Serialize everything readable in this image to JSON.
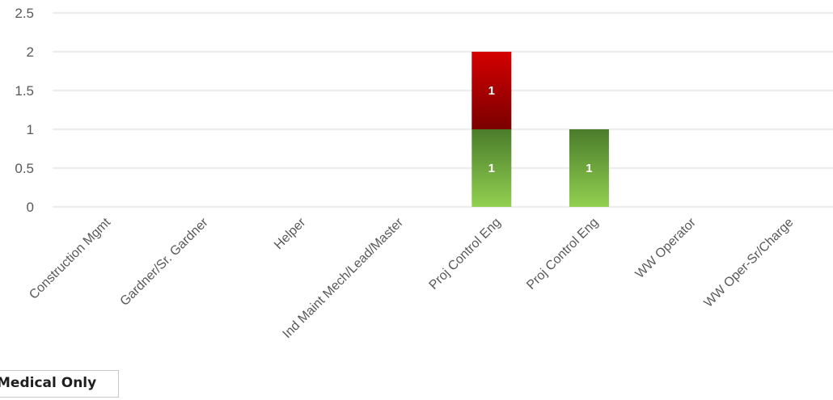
{
  "chart_data": {
    "type": "bar",
    "stacked": true,
    "categories": [
      "Construction Mgmt",
      "Gardner/Sr. Gardner",
      "Helper",
      "Ind Maint Mech/Lead/Master",
      "Proj Control Eng",
      "Proj Control Eng",
      "WW Operator",
      "WW Oper-Sr/Charge"
    ],
    "series": [
      {
        "color": "#70AD47",
        "values": [
          0,
          0,
          0,
          0,
          1,
          1,
          0,
          0
        ]
      },
      {
        "color": "#C00000",
        "values": [
          0,
          0,
          0,
          0,
          1,
          0,
          0,
          0
        ]
      }
    ],
    "yticks": [
      "0",
      "0.5",
      "1",
      "1.5",
      "2",
      "2.5"
    ],
    "ylim": [
      0,
      2.5
    ],
    "grid": true,
    "data_labels": true
  },
  "filter_button": {
    "label": "Medical Only"
  }
}
